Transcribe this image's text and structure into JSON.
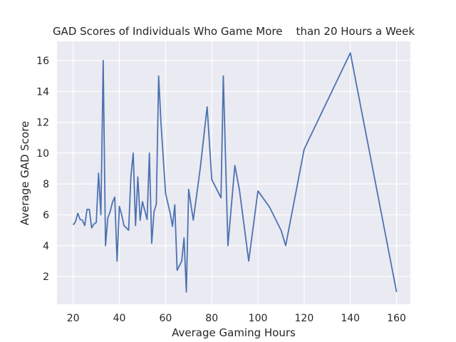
{
  "chart_data": {
    "type": "line",
    "title": "GAD Scores of Individuals Who Game More    than 20 Hours a Week",
    "xlabel": "Average Gaming Hours",
    "ylabel": "Average GAD Score",
    "xlim": [
      13,
      166
    ],
    "ylim": [
      0.2,
      17.25
    ],
    "xticks": [
      20,
      40,
      60,
      80,
      100,
      120,
      140,
      160
    ],
    "yticks": [
      2,
      4,
      6,
      8,
      10,
      12,
      14,
      16
    ],
    "grid": true,
    "background": "#eaeaf2",
    "line_color": "#4c72b0",
    "series": [
      {
        "x": [
          20,
          21,
          22,
          23,
          24,
          25,
          26,
          27,
          28,
          29,
          30,
          31,
          32,
          33,
          34,
          35,
          36,
          37,
          38,
          39,
          40,
          41,
          42,
          44,
          45,
          46,
          47,
          48,
          49,
          50,
          52,
          53,
          54,
          55,
          56,
          57,
          58,
          60,
          62,
          63,
          64,
          65,
          67,
          68,
          69,
          70,
          72,
          75,
          78,
          80,
          84,
          85,
          87,
          90,
          92,
          96,
          100,
          105,
          110,
          112,
          120,
          140,
          160
        ],
        "y": [
          5.35,
          5.55,
          6.1,
          5.7,
          5.65,
          5.3,
          6.35,
          6.35,
          5.15,
          5.4,
          5.5,
          8.7,
          6.0,
          16.0,
          4.0,
          5.8,
          6.2,
          6.8,
          7.15,
          3.0,
          6.55,
          6.0,
          5.3,
          5.0,
          8.5,
          10.0,
          5.3,
          8.45,
          5.65,
          6.85,
          5.7,
          10.0,
          4.15,
          6.2,
          6.7,
          15.0,
          12.0,
          7.4,
          6.1,
          5.25,
          6.65,
          2.4,
          3.0,
          4.5,
          1.0,
          7.65,
          5.65,
          9.0,
          13.0,
          8.3,
          7.1,
          15.0,
          4.0,
          9.2,
          7.6,
          3.0,
          7.55,
          6.5,
          5.0,
          4.0,
          10.25,
          16.5,
          1.0
        ]
      }
    ]
  }
}
